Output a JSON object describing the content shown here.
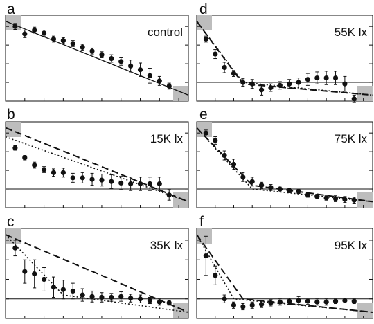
{
  "chart_data": [
    {
      "type": "scatter",
      "panel": "a",
      "label": "control",
      "x": [
        1,
        2,
        3,
        4,
        5,
        6,
        7,
        8,
        9,
        10,
        11,
        12,
        13,
        14,
        15,
        16,
        17
      ],
      "y": [
        0.75,
        0.65,
        0.7,
        0.66,
        0.58,
        0.56,
        0.52,
        0.47,
        0.42,
        0.37,
        0.32,
        0.28,
        0.22,
        0.17,
        0.09,
        0.02,
        -0.05
      ],
      "err": [
        0.04,
        0.05,
        0.04,
        0.04,
        0.04,
        0.04,
        0.04,
        0.04,
        0.04,
        0.04,
        0.05,
        0.05,
        0.08,
        0.09,
        0.1,
        0.06,
        0.04
      ],
      "lines": [
        {
          "style": "solid",
          "x": [
            0,
            19
          ],
          "y": [
            0.82,
            -0.17
          ]
        }
      ]
    },
    {
      "type": "scatter",
      "panel": "d",
      "label": "55K lx",
      "x": [
        1,
        2,
        3,
        4,
        5,
        6,
        7,
        8,
        9,
        10,
        11,
        12,
        13,
        14,
        15,
        16,
        17
      ],
      "y": [
        0.58,
        0.38,
        0.2,
        0.12,
        0.0,
        -0.02,
        -0.1,
        -0.07,
        -0.04,
        -0.02,
        0.0,
        0.04,
        0.06,
        0.06,
        0.06,
        -0.02,
        -0.22
      ],
      "err": [
        0.04,
        0.06,
        0.07,
        0.04,
        0.05,
        0.06,
        0.07,
        0.05,
        0.05,
        0.06,
        0.06,
        0.08,
        0.08,
        0.09,
        0.09,
        0.1,
        0.05
      ],
      "lines": [
        {
          "style": "dashed",
          "x": [
            0,
            5,
            19
          ],
          "y": [
            0.82,
            -0.02,
            -0.17
          ]
        },
        {
          "style": "dotted",
          "x": [
            0,
            5,
            19
          ],
          "y": [
            0.82,
            0.0,
            -0.17
          ]
        }
      ]
    },
    {
      "type": "scatter",
      "panel": "b",
      "label": "15K lx",
      "x": [
        1,
        2,
        3,
        4,
        5,
        6,
        7,
        8,
        9,
        10,
        11,
        12,
        13,
        14,
        15,
        16,
        17
      ],
      "y": [
        0.55,
        0.42,
        0.32,
        0.26,
        0.22,
        0.22,
        0.15,
        0.15,
        0.13,
        0.12,
        0.1,
        0.08,
        0.07,
        0.07,
        0.07,
        0.07,
        -0.08
      ],
      "err": [
        0.03,
        0.03,
        0.04,
        0.04,
        0.05,
        0.06,
        0.06,
        0.07,
        0.08,
        0.08,
        0.09,
        0.09,
        0.09,
        0.09,
        0.09,
        0.09,
        0.07
      ],
      "lines": [
        {
          "style": "dashed",
          "x": [
            0,
            19
          ],
          "y": [
            0.82,
            -0.17
          ]
        },
        {
          "style": "dotted",
          "x": [
            0,
            19
          ],
          "y": [
            0.7,
            -0.17
          ]
        }
      ]
    },
    {
      "type": "scatter",
      "panel": "e",
      "label": "75K lx",
      "x": [
        1,
        2,
        3,
        4,
        5,
        6,
        7,
        8,
        9,
        10,
        11,
        12,
        13,
        14,
        15,
        16,
        17
      ],
      "y": [
        0.75,
        0.65,
        0.45,
        0.33,
        0.16,
        0.1,
        0.05,
        0.02,
        0.0,
        -0.02,
        -0.03,
        -0.08,
        -0.1,
        -0.12,
        -0.13,
        -0.14,
        -0.15
      ],
      "err": [
        0.04,
        0.05,
        0.06,
        0.07,
        0.06,
        0.06,
        0.04,
        0.04,
        0.04,
        0.03,
        0.03,
        0.03,
        0.03,
        0.03,
        0.04,
        0.04,
        0.04
      ],
      "lines": [
        {
          "style": "dashed",
          "x": [
            0,
            6,
            19
          ],
          "y": [
            0.82,
            0.05,
            -0.17
          ]
        },
        {
          "style": "dotted",
          "x": [
            0,
            6,
            19
          ],
          "y": [
            0.82,
            0.0,
            -0.17
          ]
        }
      ]
    },
    {
      "type": "scatter",
      "panel": "c",
      "label": "35K lx",
      "x": [
        1,
        2,
        3,
        4,
        5,
        6,
        7,
        8,
        9,
        10,
        11,
        12,
        13,
        14,
        15,
        16,
        17
      ],
      "y": [
        0.65,
        0.35,
        0.32,
        0.25,
        0.15,
        0.12,
        0.1,
        0.05,
        0.03,
        0.02,
        0.02,
        0.03,
        0.01,
        0.0,
        -0.02,
        -0.04,
        -0.05
      ],
      "err": [
        0.1,
        0.15,
        0.18,
        0.15,
        0.13,
        0.12,
        0.1,
        0.08,
        0.07,
        0.06,
        0.05,
        0.06,
        0.05,
        0.05,
        0.04,
        0.04,
        0.03
      ],
      "lines": [
        {
          "style": "dashed",
          "x": [
            0,
            19
          ],
          "y": [
            0.82,
            -0.17
          ]
        },
        {
          "style": "dotted",
          "x": [
            0,
            6,
            19
          ],
          "y": [
            0.82,
            0.05,
            -0.17
          ]
        }
      ]
    },
    {
      "type": "scatter",
      "panel": "f",
      "label": "95K lx",
      "x": [
        1,
        2,
        3,
        4,
        5,
        6,
        7,
        8,
        9,
        10,
        11,
        12,
        13,
        14,
        15,
        16,
        17
      ],
      "y": [
        0.55,
        0.3,
        0.0,
        -0.08,
        -0.1,
        -0.08,
        -0.07,
        -0.05,
        -0.04,
        -0.03,
        -0.02,
        -0.03,
        -0.04,
        -0.04,
        -0.03,
        -0.02,
        -0.03
      ],
      "err": [
        0.25,
        0.12,
        0.05,
        0.04,
        0.04,
        0.04,
        0.04,
        0.04,
        0.04,
        0.04,
        0.05,
        0.04,
        0.04,
        0.04,
        0.03,
        0.03,
        0.03
      ],
      "lines": [
        {
          "style": "dashed",
          "x": [
            0,
            5,
            19
          ],
          "y": [
            0.82,
            0.0,
            -0.17
          ]
        },
        {
          "style": "dotted",
          "x": [
            0,
            4,
            19
          ],
          "y": [
            0.82,
            0.0,
            -0.17
          ]
        }
      ]
    }
  ],
  "shared": {
    "xlim": [
      0,
      19
    ],
    "ylim": [
      -0.25,
      0.9
    ],
    "reference_line_y": 0,
    "y_ticks": [
      0.0,
      0.25,
      0.5,
      0.75
    ],
    "x_ticks": [
      0,
      2,
      4,
      6,
      8,
      10,
      12,
      14,
      16,
      18
    ],
    "marker_color": "#111111",
    "corner_box_color": "#bdbdbd"
  }
}
